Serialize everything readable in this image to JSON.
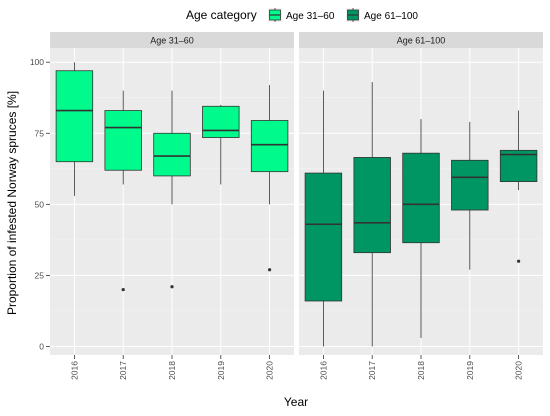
{
  "legend": {
    "title": "Age category",
    "items": [
      {
        "label": "Age 31–60",
        "color": "#00FA8C"
      },
      {
        "label": "Age 61–100",
        "color": "#009664"
      }
    ]
  },
  "chart_data": {
    "type": "boxplot",
    "xlabel": "Year",
    "ylabel": "Proportion of infested Norway spruces [%]",
    "ylim": [
      -3,
      105
    ],
    "yticks": [
      0,
      25,
      50,
      75,
      100
    ],
    "categories": [
      "2016",
      "2017",
      "2018",
      "2019",
      "2020"
    ],
    "grid": true,
    "legend_position": "top",
    "panels": [
      {
        "title": "Age 31–60",
        "fill": "#00FA8C",
        "boxes": [
          {
            "x": "2016",
            "lower_whisker": 53,
            "q1": 65,
            "median": 83,
            "q3": 97,
            "upper_whisker": 100,
            "outliers": []
          },
          {
            "x": "2017",
            "lower_whisker": 57,
            "q1": 62,
            "median": 77,
            "q3": 83,
            "upper_whisker": 90,
            "outliers": [
              20
            ]
          },
          {
            "x": "2018",
            "lower_whisker": 50,
            "q1": 60,
            "median": 67,
            "q3": 75,
            "upper_whisker": 90,
            "outliers": [
              21
            ]
          },
          {
            "x": "2019",
            "lower_whisker": 57,
            "q1": 73.5,
            "median": 76,
            "q3": 84.5,
            "upper_whisker": 85,
            "outliers": []
          },
          {
            "x": "2020",
            "lower_whisker": 50,
            "q1": 61.5,
            "median": 71,
            "q3": 79.5,
            "upper_whisker": 92,
            "outliers": [
              27
            ]
          }
        ]
      },
      {
        "title": "Age 61–100",
        "fill": "#009664",
        "boxes": [
          {
            "x": "2016",
            "lower_whisker": 0,
            "q1": 16,
            "median": 43,
            "q3": 61,
            "upper_whisker": 90,
            "outliers": []
          },
          {
            "x": "2017",
            "lower_whisker": 0,
            "q1": 33,
            "median": 43.5,
            "q3": 66.5,
            "upper_whisker": 93,
            "outliers": []
          },
          {
            "x": "2018",
            "lower_whisker": 3,
            "q1": 36.5,
            "median": 50,
            "q3": 68,
            "upper_whisker": 80,
            "outliers": []
          },
          {
            "x": "2019",
            "lower_whisker": 27,
            "q1": 48,
            "median": 59.5,
            "q3": 65.5,
            "upper_whisker": 79,
            "outliers": []
          },
          {
            "x": "2020",
            "lower_whisker": 55,
            "q1": 58,
            "median": 67.5,
            "q3": 69,
            "upper_whisker": 83,
            "outliers": [
              30
            ]
          }
        ]
      }
    ]
  }
}
